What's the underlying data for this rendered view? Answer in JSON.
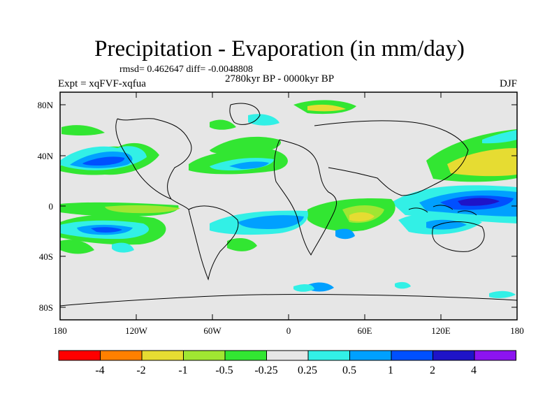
{
  "title": "Precipitation - Evaporation (in mm/day)",
  "stats": "rmsd= 0.462647 diff= -0.0048808",
  "period": "2780kyr BP - 0000kyr BP",
  "experiment": "Expt = xqFVF-xqfua",
  "season": "DJF",
  "axes": {
    "y_ticks": [
      "80N",
      "40N",
      "0",
      "40S",
      "80S"
    ],
    "x_ticks": [
      "180",
      "120W",
      "60W",
      "0",
      "60E",
      "120E",
      "180"
    ]
  },
  "colorbar": {
    "labels": [
      "-4",
      "-2",
      "-1",
      "-0.5",
      "-0.25",
      "0.25",
      "0.5",
      "1",
      "2",
      "4"
    ],
    "colors": [
      "#ff0000",
      "#ff8000",
      "#e6dc32",
      "#a0e632",
      "#32e632",
      "#e6e6e6",
      "#32f0e6",
      "#00a0ff",
      "#0050ff",
      "#1e14c8",
      "#8c14f0"
    ]
  }
}
